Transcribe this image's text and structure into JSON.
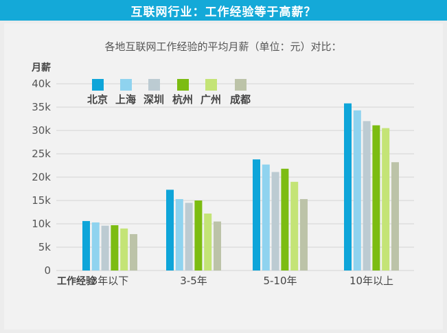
{
  "banner": {
    "title": "互联网行业：工作经验等于高薪？"
  },
  "chart_data": {
    "type": "bar",
    "title": "各地互联网工作经验的平均月薪（单位：元）对比：",
    "ylabel": "月薪",
    "xlabel": "工作经验",
    "ylim": [
      0,
      40000
    ],
    "yticks": [
      0,
      5000,
      10000,
      15000,
      20000,
      25000,
      30000,
      35000,
      40000
    ],
    "ytick_labels": [
      "0",
      "5k",
      "10k",
      "15k",
      "20k",
      "25k",
      "30k",
      "35k",
      "40k"
    ],
    "categories": [
      "3年以下",
      "3-5年",
      "5-10年",
      "10年以上"
    ],
    "grid": true,
    "legend_position": "top-left",
    "series": [
      {
        "name": "北京",
        "color": "#0ea5d9",
        "values": [
          10600,
          17300,
          23800,
          35800
        ]
      },
      {
        "name": "上海",
        "color": "#8fd3ef",
        "values": [
          10300,
          15300,
          22700,
          34300
        ]
      },
      {
        "name": "深圳",
        "color": "#bccbd2",
        "values": [
          9600,
          14500,
          21100,
          32000
        ]
      },
      {
        "name": "杭州",
        "color": "#7cbc12",
        "values": [
          9700,
          15000,
          21800,
          31100
        ]
      },
      {
        "name": "广州",
        "color": "#c4e476",
        "values": [
          9000,
          12200,
          19000,
          30500
        ]
      },
      {
        "name": "成都",
        "color": "#bcc3a8",
        "values": [
          7800,
          10500,
          15300,
          23200
        ]
      }
    ]
  }
}
